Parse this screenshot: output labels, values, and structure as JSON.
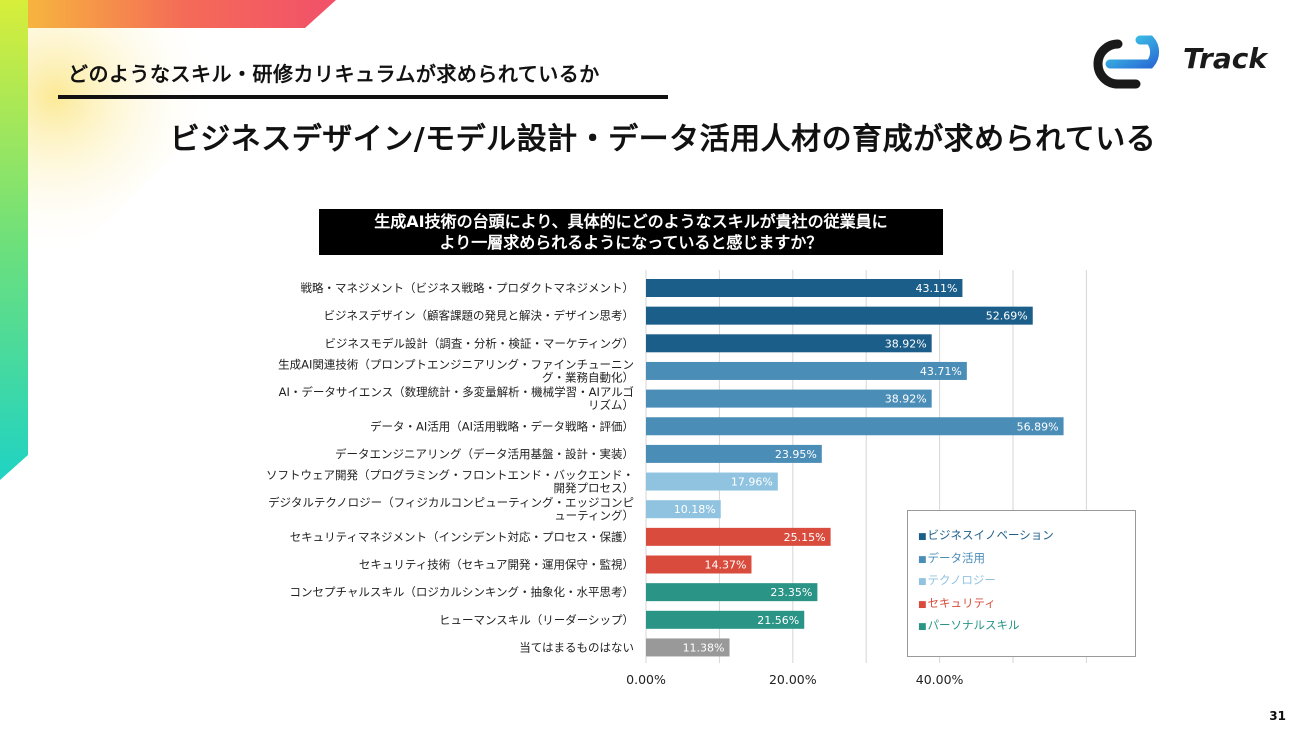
{
  "slide": {
    "section_header": "どのようなスキル・研修カリキュラムが求められているか",
    "headline": "ビジネスデザイン/モデル設計・データ活用人材の育成が求められている",
    "question_line1": "生成AI技術の台頭により、具体的にどのようなスキルが貴社の従業員に",
    "question_line2": "より一層求められるようになっていると感じますか？",
    "logo_text": "Track",
    "page_number": "31"
  },
  "legend": [
    {
      "name": "ビジネスイノベーション",
      "color": "#1b5e8a"
    },
    {
      "name": "データ活用",
      "color": "#4a8db7"
    },
    {
      "name": "テクノロジー",
      "color": "#8fc3e0"
    },
    {
      "name": "セキュリティ",
      "color": "#d94c3d"
    },
    {
      "name": "パーソナルスキル",
      "color": "#2a9486"
    }
  ],
  "colors": {
    "ビジネスイノベーション": "#1b5e8a",
    "データ活用": "#4a8db7",
    "テクノロジー": "#8fc3e0",
    "セキュリティ": "#d94c3d",
    "パーソナルスキル": "#2a9486",
    "none": "#999999"
  },
  "chart_data": {
    "type": "bar",
    "orientation": "horizontal",
    "categories": [
      [
        "戦略・マネジメント（ビジネス戦略・プロダクトマネジメント）"
      ],
      [
        "ビジネスデザイン（顧客課題の発見と解決・デザイン思考）"
      ],
      [
        "ビジネスモデル設計（調査・分析・検証・マーケティング）"
      ],
      [
        "生成AI関連技術（プロンプトエンジニアリング・ファインチューニン",
        "グ・業務自動化）"
      ],
      [
        "AI・データサイエンス（数理統計・多変量解析・機械学習・AIアルゴ",
        "リズム）"
      ],
      [
        "データ・AI活用（AI活用戦略・データ戦略・評価）"
      ],
      [
        "データエンジニアリング（データ活用基盤・設計・実装）"
      ],
      [
        "ソフトウェア開発（プログラミング・フロントエンド・バックエンド・",
        "開発プロセス）"
      ],
      [
        "デジタルテクノロジー（フィジカルコンピューティング・エッジコンピ",
        "ューティング）"
      ],
      [
        "セキュリティマネジメント（インシデント対応・プロセス・保護）"
      ],
      [
        "セキュリティ技術（セキュア開発・運用保守・監視）"
      ],
      [
        "コンセプチャルスキル（ロジカルシンキング・抽象化・水平思考）"
      ],
      [
        "ヒューマンスキル（リーダーシップ）"
      ],
      [
        "当てはまるものはない"
      ]
    ],
    "values": [
      43.11,
      52.69,
      38.92,
      43.71,
      38.92,
      56.89,
      23.95,
      17.96,
      10.18,
      25.15,
      14.37,
      23.35,
      21.56,
      11.38
    ],
    "value_labels": [
      "43.11%",
      "52.69%",
      "38.92%",
      "43.71%",
      "38.92%",
      "56.89%",
      "23.95%",
      "17.96%",
      "10.18%",
      "25.15%",
      "14.37%",
      "23.35%",
      "21.56%",
      "11.38%"
    ],
    "groups": [
      "ビジネスイノベーション",
      "ビジネスイノベーション",
      "ビジネスイノベーション",
      "データ活用",
      "データ活用",
      "データ活用",
      "データ活用",
      "テクノロジー",
      "テクノロジー",
      "セキュリティ",
      "セキュリティ",
      "パーソナルスキル",
      "パーソナルスキル",
      "none"
    ],
    "x_ticks": [
      "0.00%",
      "20.00%",
      "40.00%"
    ],
    "x_tick_values": [
      0,
      20,
      40
    ],
    "xlim": [
      0,
      60
    ],
    "grid": true,
    "legend_position": "bottom-right"
  }
}
